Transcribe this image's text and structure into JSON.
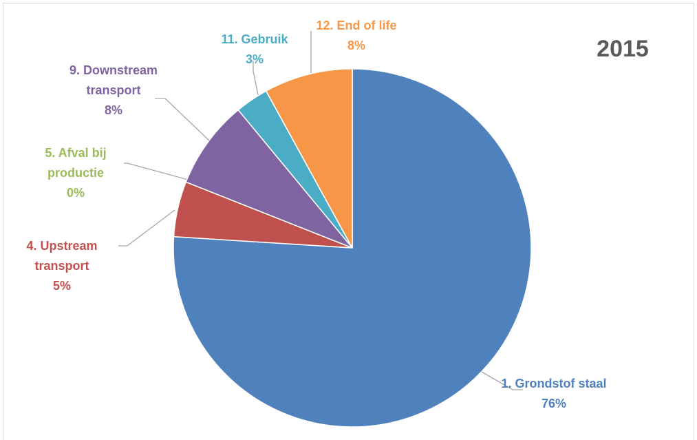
{
  "chart_data": {
    "type": "pie",
    "title": "2015",
    "categories": [
      "1. Grondstof staal",
      "4. Upstream transport",
      "5. Afval bij productie",
      "9. Downstream transport",
      "11. Gebruik",
      "12. End of life"
    ],
    "values": [
      76,
      5,
      0,
      8,
      3,
      8
    ],
    "value_labels": [
      "76%",
      "5%",
      "0%",
      "8%",
      "3%",
      "8%"
    ],
    "colors": [
      "#4f81bd",
      "#c0504d",
      "#9bbb59",
      "#8064a2",
      "#4bacc6",
      "#f79646"
    ]
  }
}
